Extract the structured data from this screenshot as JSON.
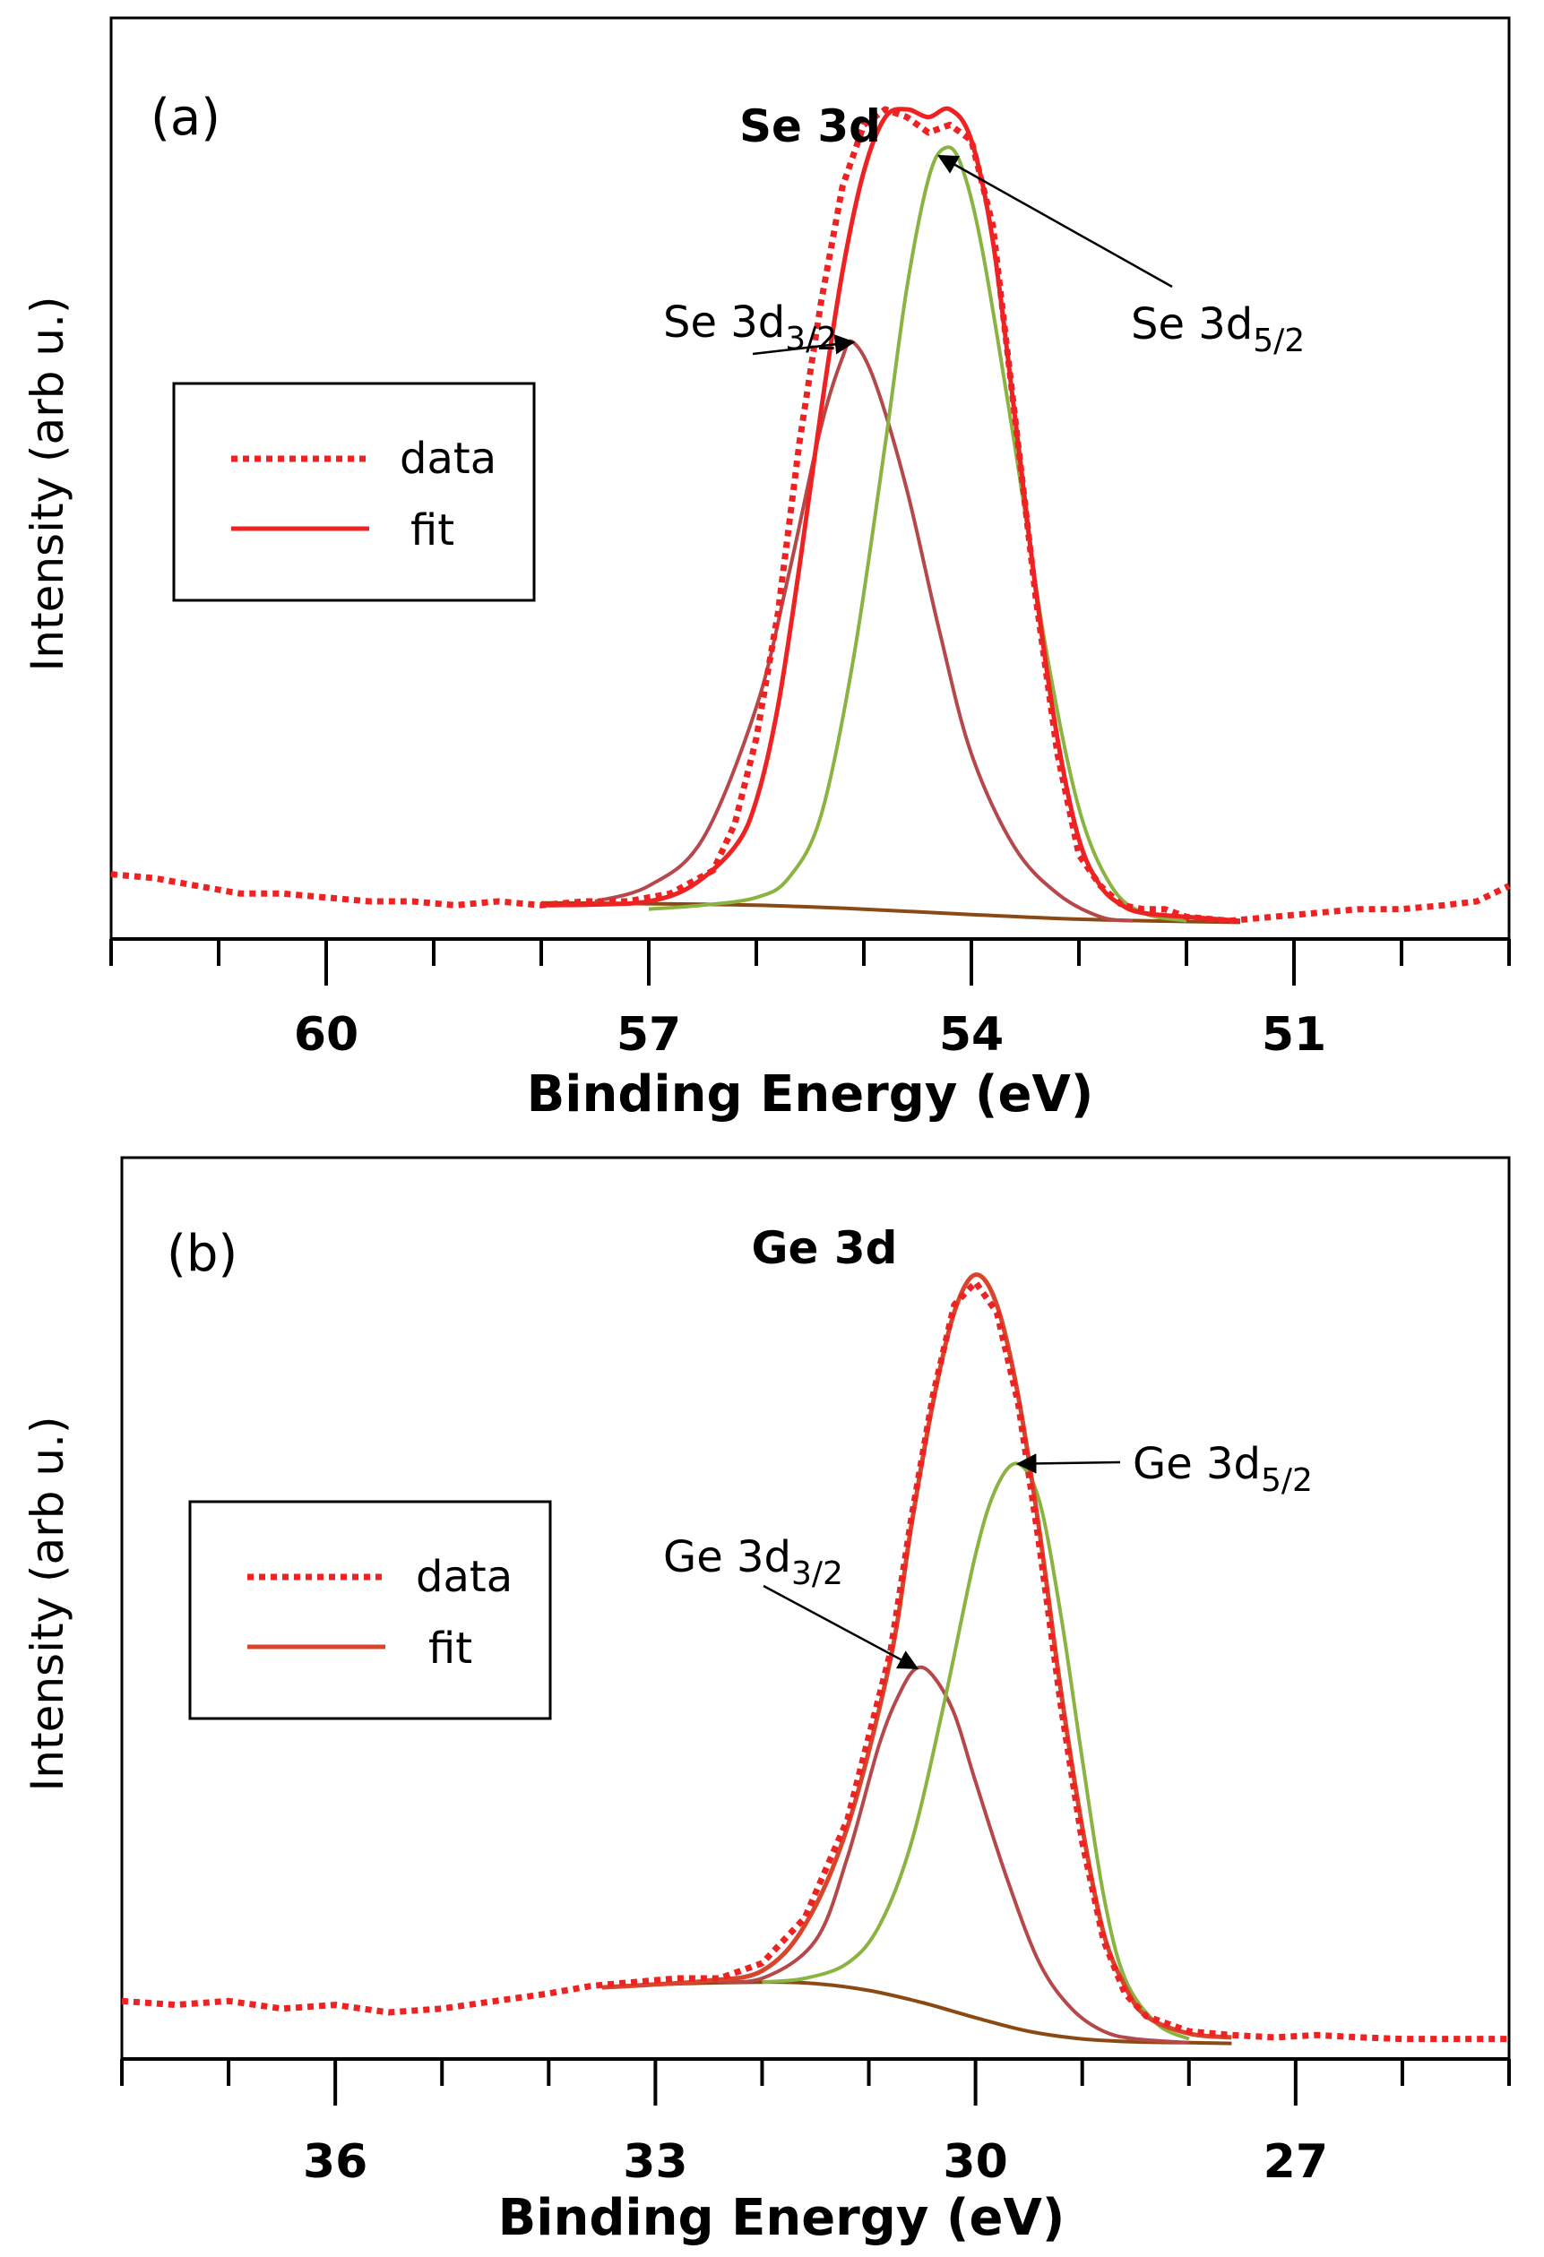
{
  "colors": {
    "data": "#ee2222",
    "fit_a": "#ee2222",
    "fit_b": "#d8452a",
    "peak_3_2": "#b5484a",
    "peak_5_2": "#8ab342",
    "background": "#8b4a14",
    "axis": "#000000"
  },
  "chart_data": [
    {
      "panel_label": "(a)",
      "type": "line",
      "title": "Se 3d",
      "xlabel": "Binding Energy (eV)",
      "ylabel": "Intensity (arb u.)",
      "x_reversed": true,
      "xlim": [
        62.0,
        49.0
      ],
      "ylim": [
        0,
        1.08
      ],
      "x_ticks": [
        60,
        57,
        54,
        51
      ],
      "x_tick_labels": [
        "60",
        "57",
        "54",
        "51"
      ],
      "x_minor_step": 1,
      "grid": false,
      "legend": {
        "placement": "left",
        "entries": [
          "data",
          "fit"
        ]
      },
      "annotations": [
        {
          "main": "Se 3d",
          "sub": "3/2",
          "target_x": 55.1,
          "target_y": 0.75
        },
        {
          "main": "Se 3d",
          "sub": "5/2",
          "target_x": 54.3,
          "target_y": 0.99
        }
      ],
      "series": [
        {
          "name": "data",
          "style": "dotted",
          "x": [
            62.0,
            61.6,
            61.2,
            60.8,
            60.4,
            60.0,
            59.6,
            59.2,
            58.8,
            58.4,
            58.0,
            57.6,
            57.2,
            56.8,
            56.4,
            56.2,
            56.0,
            55.8,
            55.6,
            55.4,
            55.2,
            55.0,
            54.8,
            54.6,
            54.4,
            54.2,
            54.0,
            53.8,
            53.6,
            53.4,
            53.2,
            53.0,
            52.8,
            52.6,
            52.4,
            52.2,
            52.0,
            51.6,
            51.2,
            50.8,
            50.4,
            50.0,
            49.6,
            49.3,
            49.0
          ],
          "y": [
            0.065,
            0.06,
            0.05,
            0.04,
            0.04,
            0.035,
            0.03,
            0.03,
            0.025,
            0.03,
            0.025,
            0.03,
            0.03,
            0.04,
            0.07,
            0.13,
            0.24,
            0.4,
            0.62,
            0.8,
            0.95,
            1.03,
            1.05,
            1.04,
            1.02,
            1.03,
            1.01,
            0.9,
            0.66,
            0.42,
            0.22,
            0.09,
            0.05,
            0.025,
            0.02,
            0.02,
            0.01,
            0.005,
            0.01,
            0.015,
            0.02,
            0.02,
            0.025,
            0.03,
            0.05
          ]
        },
        {
          "name": "fit",
          "style": "solid",
          "x": [
            58.0,
            57.5,
            57.0,
            56.6,
            56.2,
            56.0,
            55.8,
            55.6,
            55.4,
            55.2,
            55.0,
            54.8,
            54.6,
            54.4,
            54.2,
            54.0,
            53.8,
            53.6,
            53.4,
            53.2,
            53.0,
            52.8,
            52.6,
            52.4,
            52.0,
            51.5
          ],
          "y": [
            0.025,
            0.026,
            0.03,
            0.05,
            0.1,
            0.16,
            0.28,
            0.46,
            0.66,
            0.84,
            0.97,
            1.04,
            1.05,
            1.04,
            1.05,
            1.01,
            0.88,
            0.66,
            0.43,
            0.24,
            0.11,
            0.05,
            0.025,
            0.015,
            0.01,
            0.005
          ]
        },
        {
          "name": "Se 3d3/2",
          "style": "component",
          "component": "peak_3_2",
          "x": [
            57.5,
            57.0,
            56.5,
            56.0,
            55.7,
            55.4,
            55.2,
            55.1,
            54.9,
            54.6,
            54.3,
            54.0,
            53.6,
            53.2,
            52.8,
            52.5
          ],
          "y": [
            0.03,
            0.05,
            0.11,
            0.28,
            0.45,
            0.64,
            0.73,
            0.75,
            0.7,
            0.56,
            0.38,
            0.22,
            0.1,
            0.04,
            0.01,
            0.005
          ]
        },
        {
          "name": "Se 3d5/2",
          "style": "component",
          "component": "peak_5_2",
          "x": [
            57.0,
            56.5,
            56.0,
            55.7,
            55.4,
            55.1,
            54.8,
            54.6,
            54.4,
            54.25,
            54.1,
            53.9,
            53.6,
            53.3,
            53.0,
            52.7,
            52.4,
            52.0
          ],
          "y": [
            0.02,
            0.025,
            0.035,
            0.06,
            0.14,
            0.34,
            0.62,
            0.82,
            0.96,
            1.0,
            0.98,
            0.87,
            0.62,
            0.35,
            0.15,
            0.05,
            0.015,
            0.005
          ]
        },
        {
          "name": "background",
          "style": "component",
          "component": "background",
          "x": [
            58.0,
            57.0,
            56.0,
            55.0,
            54.0,
            53.0,
            52.0,
            51.5
          ],
          "y": [
            0.028,
            0.027,
            0.025,
            0.02,
            0.013,
            0.007,
            0.004,
            0.003
          ]
        }
      ]
    },
    {
      "panel_label": "(b)",
      "type": "line",
      "title": "Ge 3d",
      "xlabel": "Binding Energy (eV)",
      "ylabel": "Intensity (arb u.)",
      "x_reversed": true,
      "xlim": [
        38.0,
        25.0
      ],
      "ylim": [
        0,
        1.08
      ],
      "x_ticks": [
        36,
        33,
        30,
        27
      ],
      "x_tick_labels": [
        "36",
        "33",
        "30",
        "27"
      ],
      "x_minor_step": 1,
      "grid": false,
      "legend": {
        "placement": "left",
        "entries": [
          "data",
          "fit"
        ]
      },
      "annotations": [
        {
          "main": "Ge 3d",
          "sub": "3/2",
          "target_x": 30.55,
          "target_y": 0.5
        },
        {
          "main": "Ge 3d",
          "sub": "5/2",
          "target_x": 29.6,
          "target_y": 0.77
        }
      ],
      "series": [
        {
          "name": "data",
          "style": "dotted",
          "x": [
            38.0,
            37.5,
            37.0,
            36.5,
            36.0,
            35.5,
            35.0,
            34.5,
            34.0,
            33.6,
            33.2,
            32.8,
            32.4,
            32.0,
            31.6,
            31.2,
            30.8,
            30.6,
            30.4,
            30.2,
            30.0,
            29.8,
            29.6,
            29.4,
            29.2,
            29.0,
            28.8,
            28.6,
            28.4,
            28.0,
            27.6,
            27.2,
            26.8,
            26.4,
            26.0,
            25.5,
            25.0
          ],
          "y": [
            0.06,
            0.055,
            0.06,
            0.05,
            0.055,
            0.045,
            0.05,
            0.06,
            0.07,
            0.08,
            0.085,
            0.09,
            0.09,
            0.11,
            0.17,
            0.3,
            0.52,
            0.7,
            0.86,
            0.98,
            1.01,
            0.97,
            0.85,
            0.66,
            0.45,
            0.27,
            0.14,
            0.07,
            0.04,
            0.02,
            0.015,
            0.012,
            0.015,
            0.012,
            0.01,
            0.01,
            0.01
          ]
        },
        {
          "name": "fit",
          "style": "solid",
          "x": [
            33.5,
            33.0,
            32.5,
            32.0,
            31.6,
            31.2,
            30.8,
            30.6,
            30.4,
            30.2,
            30.0,
            29.8,
            29.6,
            29.4,
            29.2,
            29.0,
            28.8,
            28.6,
            28.4,
            28.0,
            27.6
          ],
          "y": [
            0.078,
            0.082,
            0.087,
            0.1,
            0.16,
            0.29,
            0.51,
            0.69,
            0.85,
            0.97,
            1.02,
            0.98,
            0.86,
            0.68,
            0.47,
            0.29,
            0.15,
            0.08,
            0.04,
            0.017,
            0.012
          ]
        },
        {
          "name": "Ge 3d3/2",
          "style": "component",
          "component": "peak_3_2",
          "x": [
            32.5,
            32.0,
            31.5,
            31.2,
            30.9,
            30.7,
            30.55,
            30.4,
            30.2,
            30.0,
            29.7,
            29.4,
            29.1,
            28.8,
            28.5,
            28.0
          ],
          "y": [
            0.087,
            0.09,
            0.14,
            0.25,
            0.4,
            0.47,
            0.5,
            0.49,
            0.44,
            0.35,
            0.22,
            0.11,
            0.05,
            0.02,
            0.01,
            0.005
          ]
        },
        {
          "name": "Ge 3d5/2",
          "style": "component",
          "component": "peak_5_2",
          "x": [
            32.0,
            31.6,
            31.2,
            30.9,
            30.6,
            30.3,
            30.0,
            29.8,
            29.6,
            29.4,
            29.2,
            29.0,
            28.8,
            28.6,
            28.3,
            28.0
          ],
          "y": [
            0.085,
            0.09,
            0.11,
            0.16,
            0.27,
            0.45,
            0.65,
            0.74,
            0.77,
            0.72,
            0.57,
            0.38,
            0.2,
            0.09,
            0.03,
            0.01
          ]
        },
        {
          "name": "background",
          "style": "component",
          "component": "background",
          "x": [
            33.5,
            33.0,
            32.0,
            31.5,
            31.0,
            30.5,
            30.0,
            29.5,
            29.0,
            28.5,
            28.0,
            27.6
          ],
          "y": [
            0.078,
            0.082,
            0.085,
            0.083,
            0.074,
            0.058,
            0.038,
            0.02,
            0.01,
            0.006,
            0.005,
            0.004
          ]
        }
      ]
    }
  ]
}
